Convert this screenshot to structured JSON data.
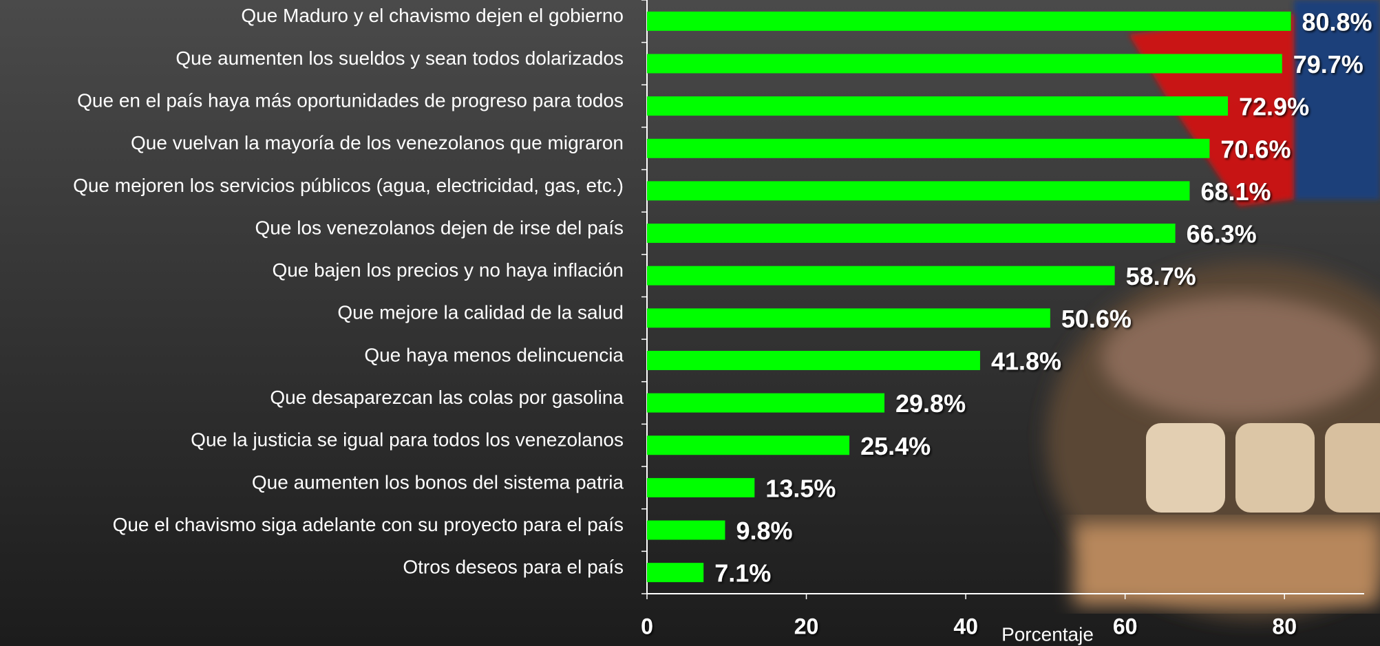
{
  "chart_data": {
    "type": "bar",
    "orientation": "horizontal",
    "categories": [
      "Que Maduro y el chavismo dejen el gobierno",
      "Que aumenten los sueldos y sean todos dolarizados",
      "Que en el país haya más oportunidades de progreso para todos",
      "Que vuelvan la mayoría de los venezolanos que migraron",
      "Que mejoren los servicios públicos (agua, electricidad, gas, etc.)",
      "Que los venezolanos dejen de irse del país",
      "Que bajen los precios y no haya inflación",
      "Que mejore la calidad de la salud",
      "Que haya menos delincuencia",
      "Que desaparezcan las colas por gasolina",
      "Que la justicia se igual para todos los venezolanos",
      "Que aumenten los bonos del sistema patria",
      "Que el chavismo siga adelante con su proyecto para el país",
      "Otros deseos para el país"
    ],
    "values": [
      80.8,
      79.7,
      72.9,
      70.6,
      68.1,
      66.3,
      58.7,
      50.6,
      41.8,
      29.8,
      25.4,
      13.5,
      9.8,
      7.1
    ],
    "value_labels": [
      "80.8%",
      "79.7%",
      "72.9%",
      "70.6%",
      "68.1%",
      "66.3%",
      "58.7%",
      "50.6%",
      "41.8%",
      "29.8%",
      "25.4%",
      "13.5%",
      "9.8%",
      "7.1%"
    ],
    "color": "#00ff00",
    "xlabel": "Porcentaje",
    "xlim": [
      0,
      90
    ],
    "xticks": [
      0,
      20,
      40,
      60,
      80
    ]
  }
}
